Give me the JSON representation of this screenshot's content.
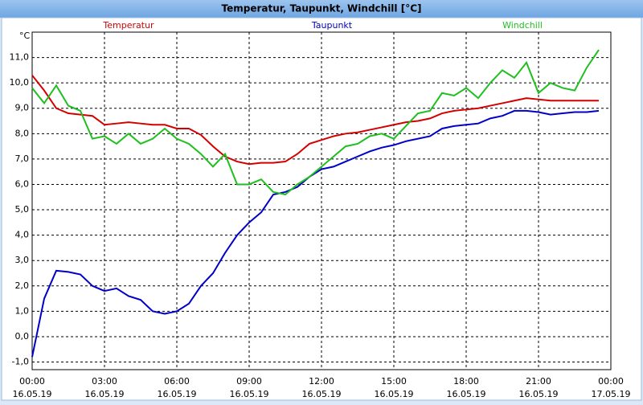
{
  "chart_data": {
    "type": "line",
    "title": "Temperatur, Taupunkt, Windchill [°C]",
    "y_unit": "°C",
    "x": [
      0,
      0.5,
      1,
      1.5,
      2,
      2.5,
      3,
      3.5,
      4,
      4.5,
      5,
      5.5,
      6,
      6.5,
      7,
      7.5,
      8,
      8.5,
      9,
      9.5,
      10,
      10.5,
      11,
      11.5,
      12,
      12.5,
      13,
      13.5,
      14,
      14.5,
      15,
      15.5,
      16,
      16.5,
      17,
      17.5,
      18,
      18.5,
      19,
      19.5,
      20,
      20.5,
      21,
      21.5,
      22,
      22.5,
      23,
      23.5
    ],
    "series": [
      {
        "name": "Temperatur",
        "color": "#d40000",
        "values": [
          10.3,
          9.7,
          9.0,
          8.8,
          8.75,
          8.7,
          8.35,
          8.4,
          8.45,
          8.4,
          8.35,
          8.35,
          8.2,
          8.2,
          7.95,
          7.5,
          7.1,
          6.9,
          6.8,
          6.85,
          6.85,
          6.9,
          7.2,
          7.6,
          7.75,
          7.9,
          8.0,
          8.05,
          8.15,
          8.25,
          8.35,
          8.45,
          8.5,
          8.6,
          8.8,
          8.9,
          8.95,
          9.0,
          9.1,
          9.2,
          9.3,
          9.4,
          9.35,
          9.3,
          9.3,
          9.3,
          9.3,
          9.3
        ]
      },
      {
        "name": "Taupunkt",
        "color": "#0000c8",
        "values": [
          -0.8,
          1.5,
          2.6,
          2.55,
          2.45,
          2.0,
          1.8,
          1.9,
          1.6,
          1.45,
          1.0,
          0.9,
          1.0,
          1.3,
          2.0,
          2.5,
          3.3,
          4.0,
          4.5,
          4.9,
          5.6,
          5.7,
          5.9,
          6.3,
          6.6,
          6.7,
          6.9,
          7.1,
          7.3,
          7.45,
          7.55,
          7.7,
          7.8,
          7.9,
          8.2,
          8.3,
          8.35,
          8.4,
          8.6,
          8.7,
          8.9,
          8.9,
          8.85,
          8.75,
          8.8,
          8.85,
          8.85,
          8.9
        ]
      },
      {
        "name": "Windchill",
        "color": "#1fbf1f",
        "values": [
          9.8,
          9.2,
          9.9,
          9.1,
          8.9,
          7.8,
          7.9,
          7.6,
          8.0,
          7.6,
          7.8,
          8.2,
          7.8,
          7.6,
          7.2,
          6.7,
          7.2,
          6.0,
          6.0,
          6.2,
          5.7,
          5.6,
          6.0,
          6.3,
          6.7,
          7.1,
          7.5,
          7.6,
          7.9,
          8.0,
          7.8,
          8.3,
          8.8,
          8.9,
          9.6,
          9.5,
          9.8,
          9.4,
          10.0,
          10.5,
          10.2,
          10.8,
          9.6,
          10.0,
          9.8,
          9.7,
          10.6,
          11.3
        ]
      }
    ],
    "xlim": [
      0,
      24
    ],
    "xticks": [
      {
        "value": 0,
        "label": "00:00"
      },
      {
        "value": 3,
        "label": "03:00"
      },
      {
        "value": 6,
        "label": "06:00"
      },
      {
        "value": 9,
        "label": "09:00"
      },
      {
        "value": 12,
        "label": "12:00"
      },
      {
        "value": 15,
        "label": "15:00"
      },
      {
        "value": 18,
        "label": "18:00"
      },
      {
        "value": 21,
        "label": "21:00"
      },
      {
        "value": 24,
        "label": "00:00"
      }
    ],
    "xtick_dates": [
      "16.05.19",
      "16.05.19",
      "16.05.19",
      "16.05.19",
      "16.05.19",
      "16.05.19",
      "16.05.19",
      "16.05.19",
      "17.05.19"
    ],
    "ylim": [
      -1.3,
      12
    ],
    "yticks": [
      {
        "value": -1,
        "label": "-1,0"
      },
      {
        "value": 0,
        "label": "0,0"
      },
      {
        "value": 1,
        "label": "1,0"
      },
      {
        "value": 2,
        "label": "2,0"
      },
      {
        "value": 3,
        "label": "3,0"
      },
      {
        "value": 4,
        "label": "4,0"
      },
      {
        "value": 5,
        "label": "5,0"
      },
      {
        "value": 6,
        "label": "6,0"
      },
      {
        "value": 7,
        "label": "7,0"
      },
      {
        "value": 8,
        "label": "8,0"
      },
      {
        "value": 9,
        "label": "9,0"
      },
      {
        "value": 10,
        "label": "10,0"
      },
      {
        "value": 11,
        "label": "11,0"
      }
    ],
    "grid": true
  }
}
